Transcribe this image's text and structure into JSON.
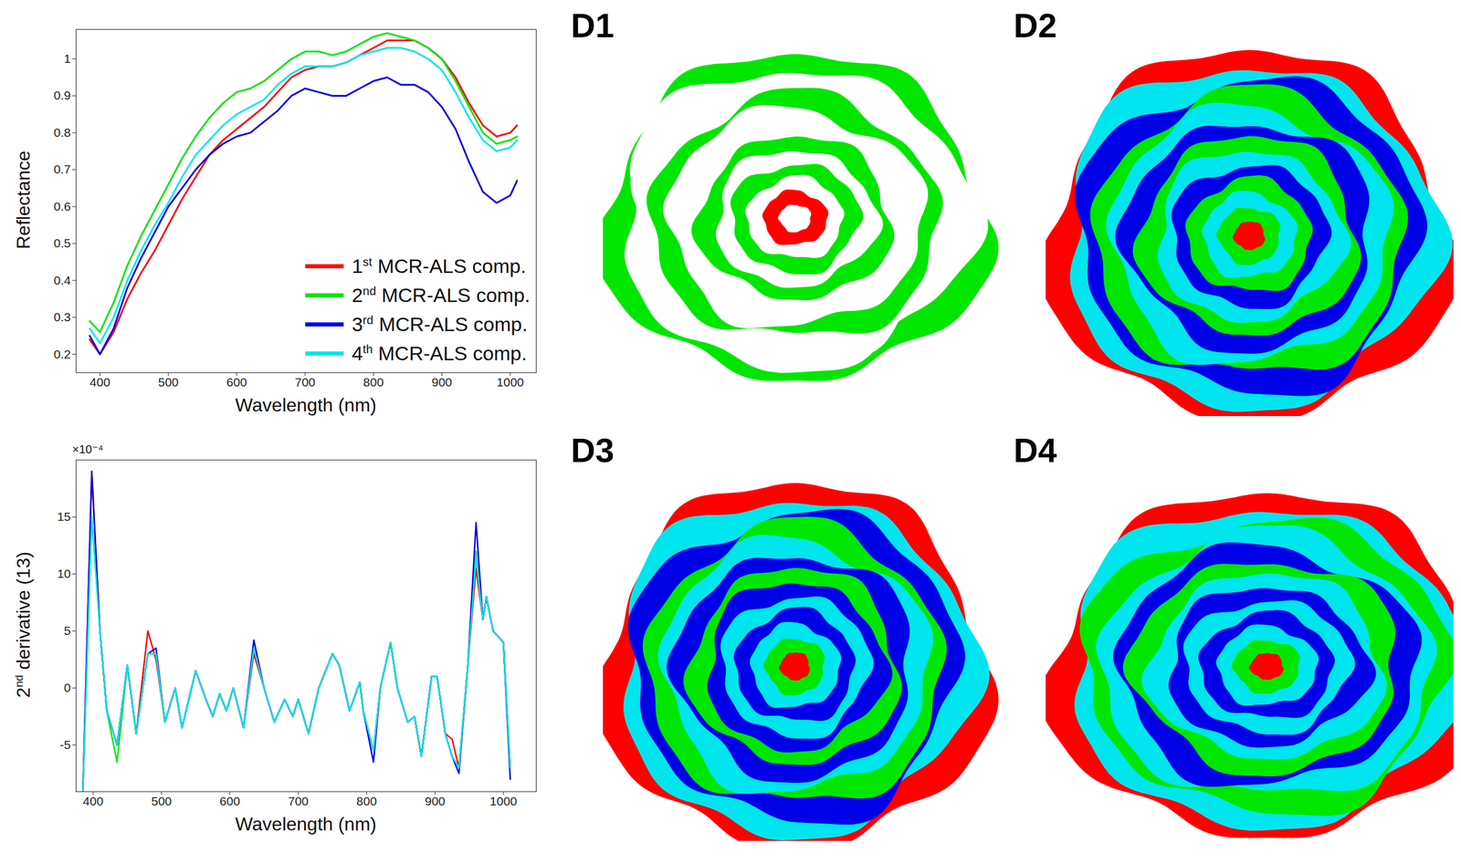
{
  "chart_data": [
    {
      "type": "line",
      "x_label": "Wavelength (nm)",
      "y_label": "Reflectance",
      "x": [
        385,
        400,
        420,
        440,
        460,
        480,
        500,
        520,
        540,
        560,
        580,
        600,
        620,
        640,
        660,
        680,
        700,
        720,
        740,
        760,
        780,
        800,
        820,
        840,
        860,
        880,
        900,
        920,
        940,
        960,
        980,
        1000,
        1010
      ],
      "xlim": [
        365,
        1038
      ],
      "xticks": [
        400,
        500,
        600,
        700,
        800,
        900,
        1000
      ],
      "ylim": [
        0.15,
        1.08
      ],
      "yticks": [
        0.2,
        0.3,
        0.4,
        0.5,
        0.6,
        0.7,
        0.8,
        0.9,
        1
      ],
      "grid": false,
      "legend": "lower right",
      "series": [
        {
          "name": "1st MCR-ALS comp.",
          "color": "#ff0000",
          "values": [
            0.24,
            0.2,
            0.26,
            0.35,
            0.42,
            0.48,
            0.55,
            0.62,
            0.68,
            0.74,
            0.78,
            0.81,
            0.84,
            0.87,
            0.91,
            0.95,
            0.97,
            0.98,
            0.98,
            0.99,
            1.01,
            1.03,
            1.05,
            1.05,
            1.05,
            1.03,
            1.0,
            0.95,
            0.88,
            0.82,
            0.79,
            0.8,
            0.82
          ]
        },
        {
          "name": "2nd MCR-ALS comp.",
          "color": "#00e600",
          "values": [
            0.29,
            0.26,
            0.34,
            0.44,
            0.52,
            0.59,
            0.66,
            0.73,
            0.79,
            0.84,
            0.88,
            0.91,
            0.92,
            0.94,
            0.97,
            1.0,
            1.02,
            1.02,
            1.01,
            1.02,
            1.04,
            1.06,
            1.07,
            1.06,
            1.05,
            1.03,
            1.0,
            0.94,
            0.87,
            0.8,
            0.77,
            0.78,
            0.79
          ]
        },
        {
          "name": "3rd MCR-ALS comp.",
          "color": "#0000e6",
          "values": [
            0.25,
            0.2,
            0.27,
            0.38,
            0.46,
            0.53,
            0.6,
            0.65,
            0.7,
            0.74,
            0.77,
            0.79,
            0.8,
            0.83,
            0.86,
            0.9,
            0.92,
            0.91,
            0.9,
            0.9,
            0.92,
            0.94,
            0.95,
            0.93,
            0.93,
            0.91,
            0.87,
            0.81,
            0.72,
            0.64,
            0.61,
            0.63,
            0.67
          ]
        },
        {
          "name": "4th MCR-ALS comp.",
          "color": "#00e5ee",
          "values": [
            0.27,
            0.23,
            0.3,
            0.4,
            0.48,
            0.55,
            0.61,
            0.68,
            0.74,
            0.78,
            0.82,
            0.85,
            0.87,
            0.89,
            0.93,
            0.96,
            0.98,
            0.98,
            0.98,
            0.99,
            1.01,
            1.02,
            1.03,
            1.03,
            1.02,
            1.0,
            0.97,
            0.91,
            0.84,
            0.78,
            0.75,
            0.76,
            0.78
          ]
        }
      ]
    },
    {
      "type": "line",
      "x_label": "Wavelength (nm)",
      "y_label": "2nd derivative (13)",
      "annotations": [
        "×10⁻⁴"
      ],
      "x": [
        385,
        398,
        410,
        420,
        435,
        450,
        463,
        480,
        492,
        505,
        520,
        530,
        550,
        565,
        575,
        585,
        595,
        605,
        620,
        635,
        650,
        665,
        680,
        692,
        700,
        715,
        730,
        750,
        760,
        775,
        790,
        795,
        810,
        820,
        835,
        845,
        860,
        870,
        880,
        895,
        903,
        915,
        925,
        935,
        948,
        960,
        970,
        975,
        985,
        1000,
        1010
      ],
      "xlim": [
        375,
        1048
      ],
      "xticks": [
        400,
        500,
        600,
        700,
        800,
        900,
        1000
      ],
      "ylim": [
        -9.1,
        20
      ],
      "yticks": [
        -5,
        0,
        5,
        10,
        15
      ],
      "grid": false,
      "series": [
        {
          "name": "1st MCR-ALS comp.",
          "color": "#ff0000",
          "values": [
            -9,
            19,
            5,
            -2,
            -5,
            2,
            -4,
            5,
            2.5,
            -3,
            0,
            -3.5,
            1.5,
            -1,
            -2.5,
            -0.5,
            -2,
            0,
            -3.5,
            3,
            0,
            -3,
            -1,
            -2.5,
            -1,
            -4,
            0,
            3,
            2,
            -2,
            0.5,
            -2,
            -5.5,
            0,
            4,
            0,
            -3,
            -2.5,
            -6,
            1,
            1,
            -4,
            -4.5,
            -7,
            2,
            10.5,
            6,
            8,
            5,
            4,
            -7
          ]
        },
        {
          "name": "2nd MCR-ALS comp.",
          "color": "#00e600",
          "values": [
            -9,
            15,
            5,
            -2,
            -6.5,
            2,
            -4,
            3,
            3,
            -3,
            0,
            -3.5,
            1.5,
            -1,
            -2.5,
            -0.5,
            -2,
            0,
            -3.5,
            3.5,
            0,
            -3,
            -1,
            -2.5,
            -1,
            -4,
            0,
            3,
            2,
            -2,
            0.5,
            -2,
            -5.5,
            0,
            4,
            0,
            -3,
            -2.5,
            -6,
            1,
            1,
            -4,
            -6,
            -7,
            2,
            12,
            6,
            8,
            5,
            4,
            -7
          ]
        },
        {
          "name": "3rd MCR-ALS comp.",
          "color": "#0000e6",
          "values": [
            -9,
            19,
            5,
            -2,
            -5,
            2,
            -4,
            3,
            3.5,
            -3,
            0,
            -3.5,
            1.5,
            -1,
            -2.5,
            -0.5,
            -2,
            0,
            -3.5,
            4.2,
            0,
            -3,
            -1,
            -2.5,
            -1,
            -4,
            0,
            3,
            2,
            -2,
            0.5,
            -2,
            -6.5,
            0,
            4,
            0,
            -3,
            -2.5,
            -6,
            1,
            1,
            -4,
            -6,
            -7.5,
            2,
            14.5,
            6,
            8,
            5,
            4,
            -8
          ]
        },
        {
          "name": "4th MCR-ALS comp.",
          "color": "#00e5ee",
          "values": [
            -9,
            15,
            5,
            -2,
            -5,
            2,
            -4,
            3,
            3,
            -3,
            0,
            -3.5,
            1.5,
            -1,
            -2.5,
            -0.5,
            -2,
            0,
            -3.5,
            3.5,
            0,
            -3,
            -1,
            -2.5,
            -1,
            -4,
            0,
            3,
            2,
            -2,
            0.5,
            -2,
            -5.5,
            0,
            4,
            0,
            -3,
            -2.5,
            -6,
            1,
            1,
            -4,
            -6,
            -7,
            2,
            11.5,
            6,
            8,
            5,
            4,
            -7
          ]
        }
      ]
    }
  ],
  "images": [
    {
      "label": "D1"
    },
    {
      "label": "D2"
    },
    {
      "label": "D3"
    },
    {
      "label": "D4"
    }
  ]
}
